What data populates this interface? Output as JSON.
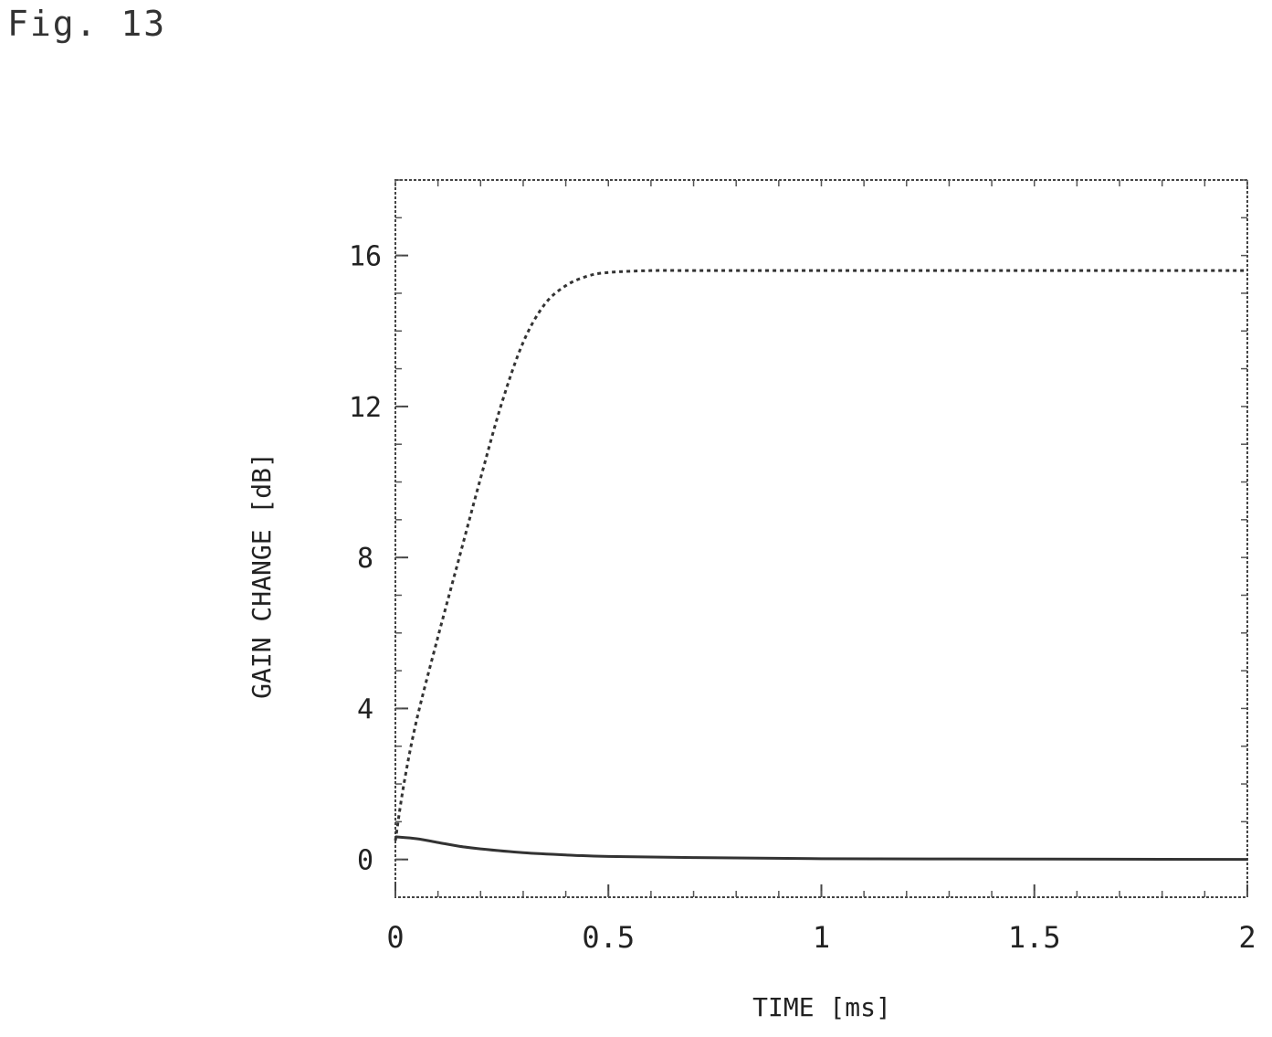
{
  "figure_label": "Fig. 13",
  "chart_data": {
    "type": "line",
    "title": "",
    "xlabel": "TIME [ms]",
    "ylabel": "GAIN CHANGE [dB]",
    "xlim": [
      0,
      2
    ],
    "ylim": [
      -1,
      18
    ],
    "x_ticks": [
      0,
      0.5,
      1,
      1.5,
      2
    ],
    "x_tick_labels": [
      "0",
      "0.5",
      "1",
      "1.5",
      "2"
    ],
    "y_ticks": [
      0,
      4,
      8,
      12,
      16
    ],
    "y_tick_labels": [
      "0",
      "4",
      "8",
      "12",
      "16"
    ],
    "grid": false,
    "series": [
      {
        "style": "dashed",
        "x": [
          0,
          0.02,
          0.05,
          0.1,
          0.15,
          0.2,
          0.25,
          0.3,
          0.35,
          0.4,
          0.45,
          0.5,
          0.6,
          0.7,
          0.8,
          1.0,
          1.5,
          2.0
        ],
        "values": [
          0.5,
          2.0,
          3.7,
          5.9,
          8.0,
          10.1,
          12.1,
          13.7,
          14.7,
          15.2,
          15.45,
          15.55,
          15.6,
          15.6,
          15.6,
          15.6,
          15.6,
          15.6
        ]
      },
      {
        "style": "solid",
        "x": [
          0,
          0.05,
          0.1,
          0.15,
          0.2,
          0.3,
          0.4,
          0.5,
          0.7,
          1.0,
          1.5,
          2.0
        ],
        "values": [
          0.6,
          0.55,
          0.45,
          0.35,
          0.28,
          0.18,
          0.12,
          0.08,
          0.05,
          0.02,
          0.01,
          0.0
        ]
      }
    ]
  }
}
